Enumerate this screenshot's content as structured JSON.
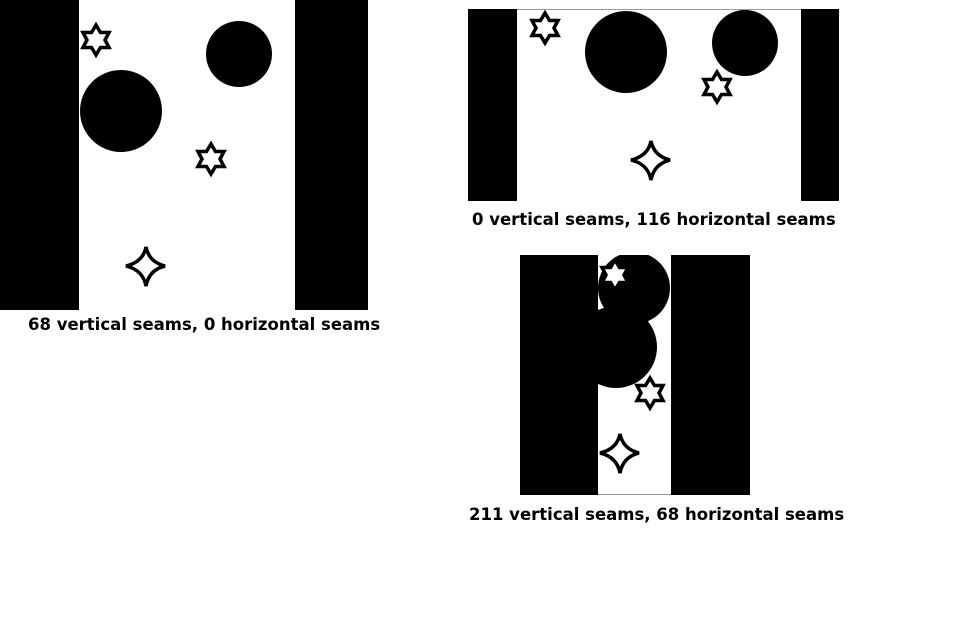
{
  "colors": {
    "background": "#ffffff",
    "ink": "#000000"
  },
  "panels": [
    {
      "caption": "68 vertical seams, 0 horizontal seams",
      "shapes": [
        "circle-icon",
        "circle-icon",
        "six-pointed-star-icon",
        "six-pointed-star-icon",
        "four-pointed-star-icon"
      ]
    },
    {
      "caption": "0 vertical seams, 116 horizontal seams",
      "shapes": [
        "circle-icon",
        "circle-icon",
        "six-pointed-star-icon",
        "six-pointed-star-icon",
        "four-pointed-star-icon"
      ]
    },
    {
      "caption": "211 vertical seams, 68 horizontal seams",
      "shapes": [
        "circle-icon",
        "circle-icon",
        "six-pointed-star-icon",
        "six-pointed-star-icon",
        "four-pointed-star-icon"
      ]
    }
  ]
}
